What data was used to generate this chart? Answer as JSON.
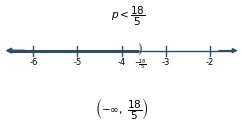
{
  "x_min": -6.7,
  "x_max": -1.3,
  "tick_positions": [
    -6,
    -5,
    -4,
    -3,
    -2
  ],
  "tick_labels": [
    "-6",
    "-5",
    "-4",
    "-3",
    "-2"
  ],
  "open_point": -3.6,
  "line_color": "#2e4d6b",
  "background_color": "#ffffff",
  "title_fontsize": 7.5,
  "tick_fontsize": 6.0,
  "notation_fontsize": 7.5,
  "point_label_fontsize": 5.0,
  "line_y": 0.5,
  "ylim": [
    -0.9,
    1.5
  ]
}
